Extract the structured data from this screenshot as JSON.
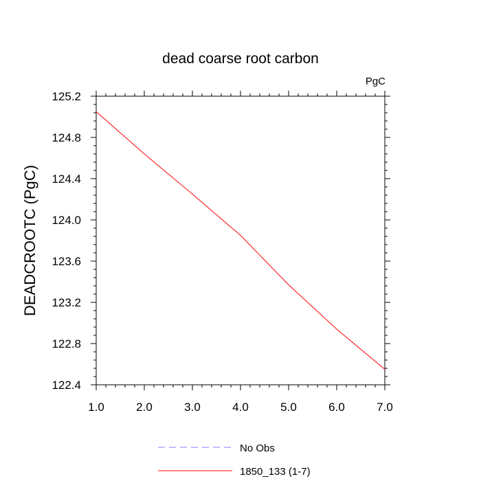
{
  "chart_data": {
    "type": "line",
    "title": "dead coarse root carbon",
    "units_label": "PgC",
    "xlabel": "",
    "ylabel": "DEADCROOTC  (PgC)",
    "xlim": [
      1.0,
      7.0
    ],
    "ylim": [
      122.4,
      125.2
    ],
    "x_ticks": [
      "1.0",
      "2.0",
      "3.0",
      "4.0",
      "5.0",
      "6.0",
      "7.0"
    ],
    "y_ticks": [
      "122.4",
      "122.8",
      "123.2",
      "123.6",
      "124.0",
      "124.4",
      "124.8",
      "125.2"
    ],
    "grid": false,
    "legend_position": "bottom",
    "series": [
      {
        "name": "No Obs",
        "color": "#8080ff",
        "dash": "dashed",
        "x": [],
        "values": []
      },
      {
        "name": "1850_133 (1-7)",
        "color": "#ff0000",
        "dash": "solid",
        "x": [
          1.0,
          2.0,
          3.0,
          4.0,
          5.0,
          6.0,
          7.0
        ],
        "values": [
          125.05,
          124.64,
          124.25,
          123.85,
          123.37,
          122.94,
          122.55
        ]
      }
    ]
  }
}
